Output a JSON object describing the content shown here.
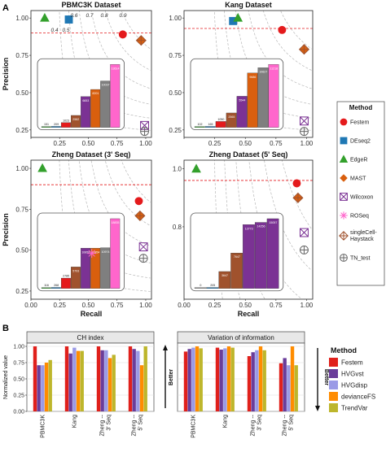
{
  "panel_labels": {
    "a": "A",
    "b": "B"
  },
  "colors": {
    "festem": "#e41a1c",
    "deseq2": "#1f78b4",
    "edger": "#33a02c",
    "mast": "#d95f0e",
    "wilcoxon": "#7b3294",
    "roseq": "#ff66cc",
    "sch": "#a0522d",
    "tn": "#666666",
    "hvgvst": "#6a3d9a",
    "hvgdisp": "#9a9ae6",
    "deviancefs": "#ff8c00",
    "trendvar": "#bdb62c",
    "festem_b": "#e0201b"
  },
  "legend_a": {
    "title": "Method",
    "items": [
      {
        "label": "Festem",
        "marker": "dot",
        "color": "#e41a1c"
      },
      {
        "label": "DEseq2",
        "marker": "square",
        "color": "#1f78b4"
      },
      {
        "label": "EdgeR",
        "marker": "triangle",
        "color": "#33a02c"
      },
      {
        "label": "MAST",
        "marker": "diamond",
        "color": "#d95f0e"
      },
      {
        "label": "Wilcoxon",
        "marker": "boxx",
        "color": "#7b3294"
      },
      {
        "label": "ROSeq",
        "marker": "star",
        "color": "#ff66cc"
      },
      {
        "label": "singleCell-\nHaystack",
        "marker": "diamondplus",
        "color": "#a0522d"
      },
      {
        "label": "TN_test",
        "marker": "circleplus",
        "color": "#666666"
      }
    ]
  },
  "legend_b": {
    "title": "Method",
    "items": [
      {
        "label": "Festem",
        "color": "#e0201b"
      },
      {
        "label": "HVGvst",
        "color": "#6a3d9a"
      },
      {
        "label": "HVGdisp",
        "color": "#9a9ae6"
      },
      {
        "label": "devianceFS",
        "color": "#ff8c00"
      },
      {
        "label": "TrendVar",
        "color": "#bdb62c"
      }
    ]
  },
  "axes_a": {
    "xlabel": "Recall",
    "ylabel": "Precision",
    "xticks": [
      "0.00",
      "0.25",
      "0.50",
      "0.75",
      "1.00"
    ],
    "yticks_top": [
      "1.00",
      "0.75",
      "0.50",
      "0.25"
    ],
    "yticks_bottom": [
      "1.0",
      "0.8"
    ],
    "yticks_bottom_left": [
      "1.00",
      "0.75",
      "0.50",
      "0.25"
    ],
    "f1_labels": [
      "0.4",
      "0.5",
      "0.6",
      "0.7",
      "0.8",
      "0.9"
    ]
  },
  "chart_data": [
    {
      "type": "scatter",
      "title": "PBMC3K Dataset",
      "xlabel": "",
      "ylabel": "Precision",
      "xlim": [
        0,
        1.05
      ],
      "ylim": [
        0.2,
        1.05
      ],
      "reference_precision": 0.9,
      "points": [
        {
          "method": "Festem",
          "x": 0.8,
          "y": 0.89
        },
        {
          "method": "DEseq2",
          "x": 0.33,
          "y": 0.99
        },
        {
          "method": "EdgeR",
          "x": 0.12,
          "y": 1.0
        },
        {
          "method": "MAST",
          "x": 0.96,
          "y": 0.85
        },
        {
          "method": "Wilcoxon",
          "x": 0.99,
          "y": 0.28
        },
        {
          "method": "TN_test",
          "x": 0.99,
          "y": 0.24
        }
      ],
      "inset": {
        "type": "bar",
        "values": [
          151,
          209,
          1023,
          2582,
          6653,
          8201,
          10037,
          13614
        ]
      }
    },
    {
      "type": "scatter",
      "title": "Kang Dataset",
      "xlabel": "",
      "ylabel": "",
      "xlim": [
        0,
        1.05
      ],
      "ylim": [
        0.2,
        1.05
      ],
      "reference_precision": 0.93,
      "points": [
        {
          "method": "Festem",
          "x": 0.8,
          "y": 0.92
        },
        {
          "method": "DEseq2",
          "x": 0.4,
          "y": 0.98
        },
        {
          "method": "EdgeR",
          "x": 0.44,
          "y": 1.0
        },
        {
          "method": "MAST",
          "x": 0.98,
          "y": 0.79
        },
        {
          "method": "Wilcoxon",
          "x": 0.98,
          "y": 0.31
        },
        {
          "method": "TN_test",
          "x": 0.98,
          "y": 0.24
        }
      ],
      "inset": {
        "type": "bar",
        "values": [
          102,
          165,
          1050,
          2565,
          5544,
          9686,
          10627,
          11218
        ]
      }
    },
    {
      "type": "scatter",
      "title": "Zheng Dataset (3' Seq)",
      "xlabel": "Recall",
      "ylabel": "Precision",
      "xlim": [
        0,
        1.05
      ],
      "ylim": [
        0.2,
        1.05
      ],
      "reference_precision": 0.9,
      "points": [
        {
          "method": "Festem",
          "x": 0.94,
          "y": 0.8
        },
        {
          "method": "EdgeR",
          "x": 0.1,
          "y": 1.0
        },
        {
          "method": "MAST",
          "x": 0.95,
          "y": 0.71
        },
        {
          "method": "Wilcoxon",
          "x": 0.98,
          "y": 0.52
        },
        {
          "method": "ROSeq",
          "x": 0.53,
          "y": 0.48
        },
        {
          "method": "TN_test",
          "x": 0.98,
          "y": 0.45
        }
      ],
      "inset": {
        "type": "bar",
        "values": [
          116,
          268,
          2785,
          5793,
          10859,
          10854,
          10974,
          18835
        ]
      }
    },
    {
      "type": "scatter",
      "title": "Zheng Dataset (5' Seq)",
      "xlabel": "Recall",
      "ylabel": "",
      "xlim": [
        0,
        1.05
      ],
      "ylim": [
        0.55,
        1.03
      ],
      "reference_precision": 0.96,
      "points": [
        {
          "method": "Festem",
          "x": 0.92,
          "y": 0.95
        },
        {
          "method": "EdgeR",
          "x": 0.1,
          "y": 1.0
        },
        {
          "method": "MAST",
          "x": 0.93,
          "y": 0.9
        },
        {
          "method": "Wilcoxon",
          "x": 0.98,
          "y": 0.78
        },
        {
          "method": "TN_test",
          "x": 0.98,
          "y": 0.72
        }
      ],
      "inset": {
        "type": "bar",
        "values": [
          0,
          205,
          3647,
          7647,
          13773,
          14256,
          15057
        ]
      }
    },
    {
      "type": "bar",
      "title": "CH index",
      "ylabel": "Normalized value",
      "annotation": "Better",
      "categories": [
        "PBMC3K",
        "Kang",
        "Zheng --\n3' Seq",
        "Zheng --\n5' Seq"
      ],
      "ylim": [
        0,
        1.0
      ],
      "series": [
        {
          "name": "Festem",
          "values": [
            1.0,
            1.0,
            1.0,
            1.0
          ]
        },
        {
          "name": "HVGvst",
          "values": [
            0.71,
            0.89,
            0.94,
            0.96
          ]
        },
        {
          "name": "HVGdisp",
          "values": [
            0.71,
            0.98,
            0.94,
            0.93
          ]
        },
        {
          "name": "devianceFS",
          "values": [
            0.75,
            0.93,
            0.82,
            0.71
          ]
        },
        {
          "name": "TrendVar",
          "values": [
            0.79,
            0.93,
            0.87,
            1.0
          ]
        }
      ]
    },
    {
      "type": "bar",
      "title": "Variation of information",
      "ylabel": "",
      "annotation": "Better",
      "categories": [
        "PBMC3K",
        "Kang",
        "Zheng --\n3' Seq",
        "Zheng --\n5' Seq"
      ],
      "ylim": [
        0,
        1.0
      ],
      "series": [
        {
          "name": "Festem",
          "values": [
            0.92,
            0.98,
            0.85,
            0.74
          ]
        },
        {
          "name": "HVGvst",
          "values": [
            0.96,
            0.95,
            0.91,
            0.82
          ]
        },
        {
          "name": "HVGdisp",
          "values": [
            0.98,
            0.97,
            0.94,
            0.71
          ]
        },
        {
          "name": "devianceFS",
          "values": [
            1.0,
            1.0,
            1.0,
            1.0
          ]
        },
        {
          "name": "TrendVar",
          "values": [
            0.97,
            0.98,
            0.94,
            0.71
          ]
        }
      ]
    }
  ]
}
